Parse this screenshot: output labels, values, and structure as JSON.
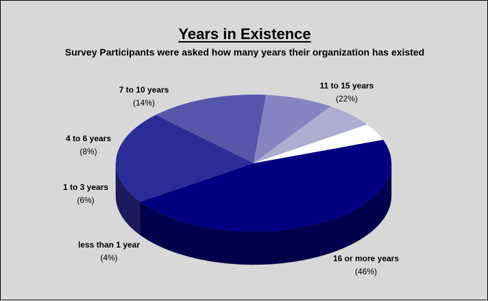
{
  "chart_data": {
    "type": "pie",
    "title": "Years in Existence",
    "subtitle": "Survey Participants were asked how many years their organization has existed",
    "slices": [
      {
        "label": "16 or more years",
        "value": 46,
        "value_label": "(46%)",
        "color": "#000080"
      },
      {
        "label": "11 to 15 years",
        "value": 22,
        "value_label": "(22%)",
        "color": "#2c2c99"
      },
      {
        "label": "7 to 10 years",
        "value": 14,
        "value_label": "(14%)",
        "color": "#5656ab"
      },
      {
        "label": "4 to 6 years",
        "value": 8,
        "value_label": "(8%)",
        "color": "#8585c4"
      },
      {
        "label": "1 to 3 years",
        "value": 6,
        "value_label": "(6%)",
        "color": "#adadd2"
      },
      {
        "label": "less than 1 year",
        "value": 4,
        "value_label": "(4%)",
        "color": "#ffffff"
      }
    ],
    "style": "3d",
    "background": "#d8d8d8",
    "legend": "none"
  }
}
